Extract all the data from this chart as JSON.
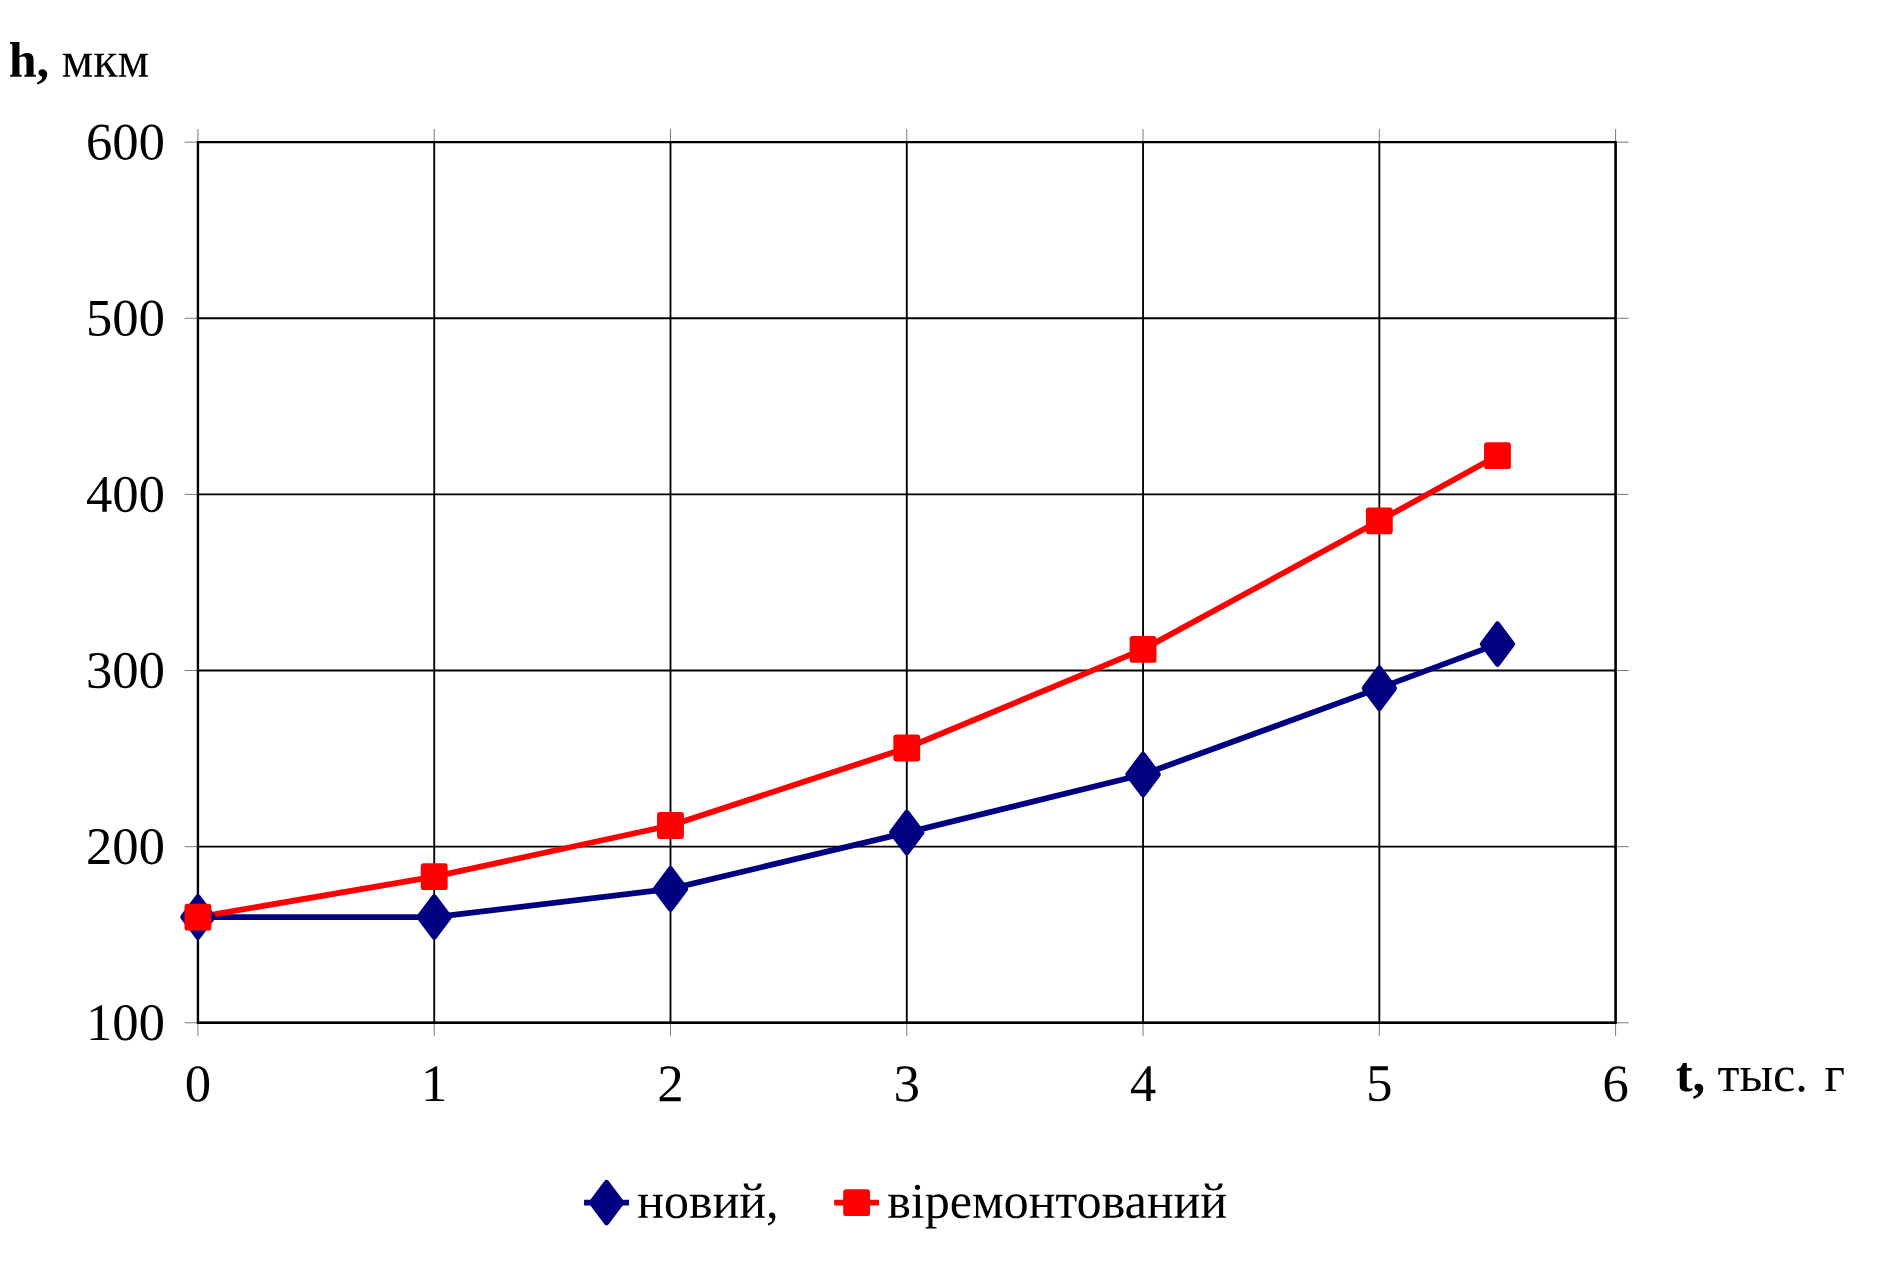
{
  "chart_data": {
    "type": "line",
    "xlabel": "**t,** тыс. г",
    "ylabel": "**h,** мкм",
    "x": [
      0,
      1,
      2,
      3,
      4,
      5,
      5.5
    ],
    "series": [
      {
        "name": "новий,",
        "color": "#000080",
        "marker": "diamond",
        "values": [
          160,
          160,
          176,
          208,
          241,
          290,
          315
        ]
      },
      {
        "name": "віремонтований",
        "color": "#ff0000",
        "marker": "square",
        "values": [
          160,
          183,
          212,
          256,
          312,
          385,
          422
        ]
      }
    ],
    "xlim": [
      0,
      6
    ],
    "xticks": [
      0,
      1,
      2,
      3,
      4,
      5,
      6
    ],
    "ylim": [
      100,
      600
    ],
    "yticks": [
      100,
      200,
      300,
      400,
      500,
      600
    ],
    "grid": true,
    "legend": "bottom",
    "line_style": "solid"
  }
}
